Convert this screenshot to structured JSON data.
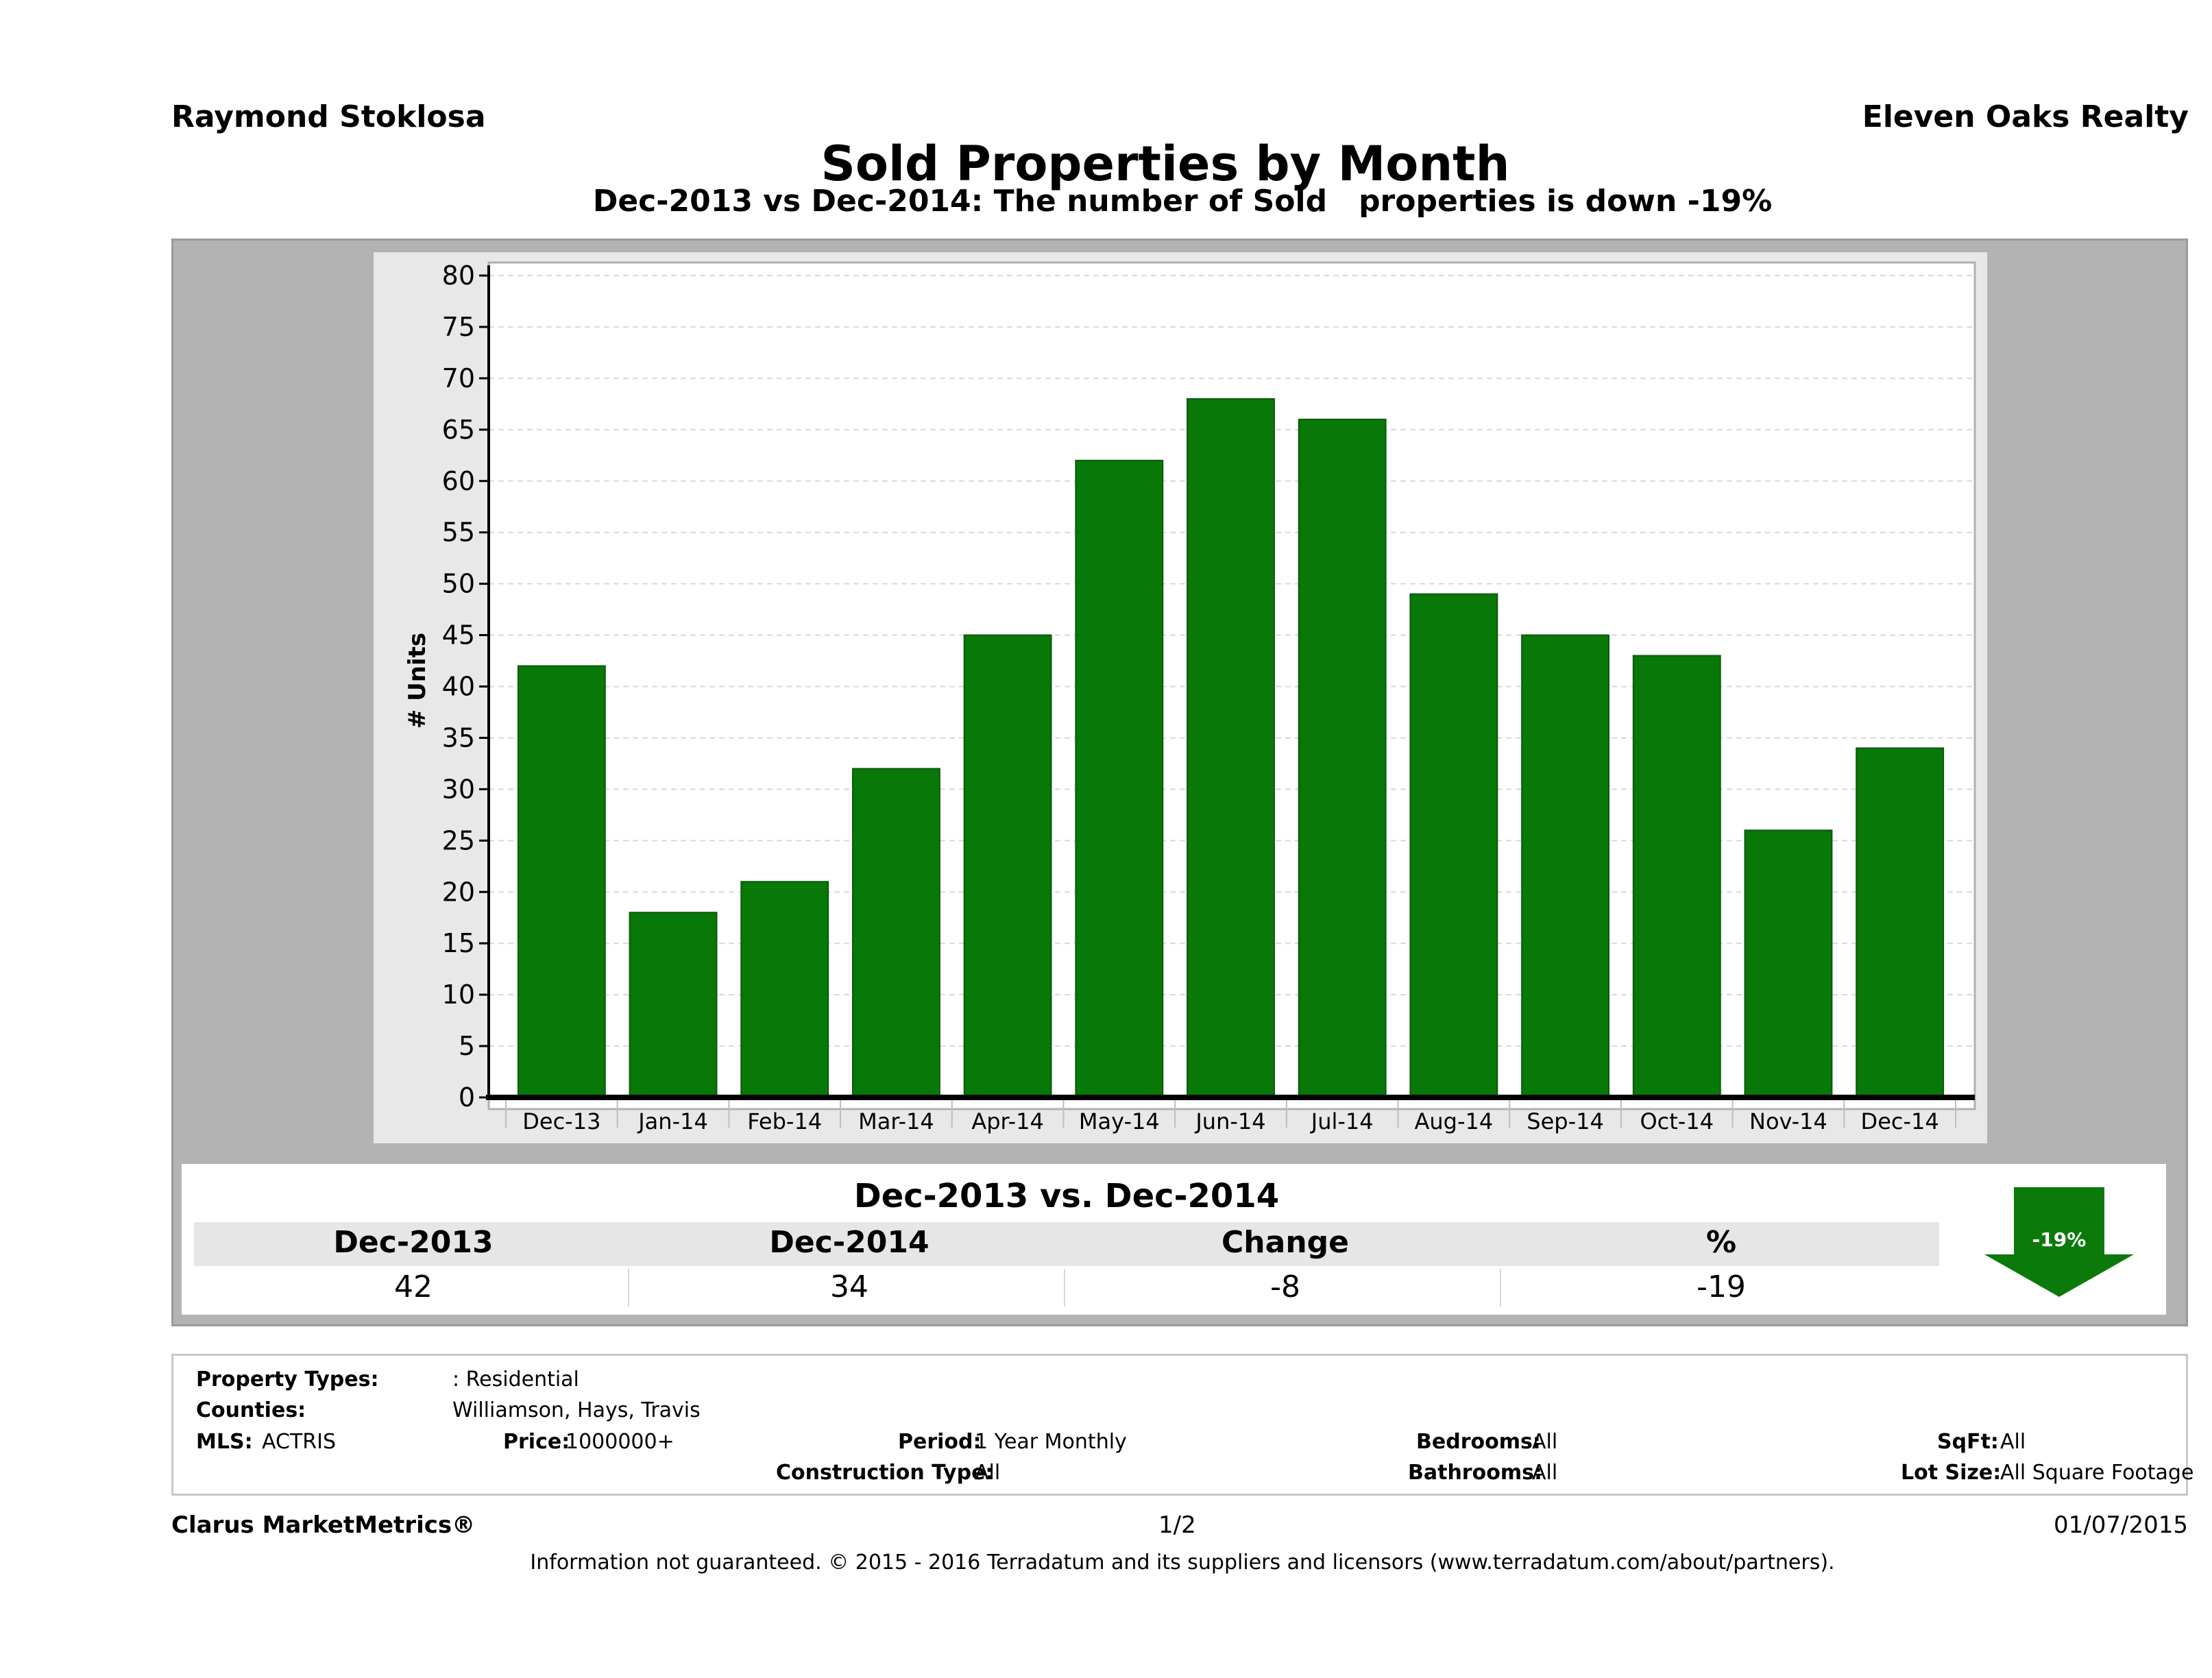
{
  "header": {
    "agent_name": "Raymond Stoklosa",
    "company_name": "Eleven Oaks Realty",
    "title": "Sold Properties by Month",
    "subtitle": "Dec-2013 vs Dec-2014: The number of Sold   properties is down -19%"
  },
  "chart_data": {
    "type": "bar",
    "title": "Sold Properties by Month",
    "categories": [
      "Dec-13",
      "Jan-14",
      "Feb-14",
      "Mar-14",
      "Apr-14",
      "May-14",
      "Jun-14",
      "Jul-14",
      "Aug-14",
      "Sep-14",
      "Oct-14",
      "Nov-14",
      "Dec-14"
    ],
    "values": [
      42,
      18,
      21,
      32,
      45,
      62,
      68,
      66,
      49,
      45,
      43,
      26,
      34
    ],
    "xlabel": "",
    "ylabel": "# Units",
    "ylim": [
      0,
      80
    ],
    "yticks": [
      "0",
      "5",
      "10",
      "15",
      "20",
      "25",
      "30",
      "35",
      "40",
      "45",
      "50",
      "55",
      "60",
      "65",
      "70",
      "75",
      "80"
    ],
    "grid": true,
    "bar_color": "#087808"
  },
  "comparison": {
    "heading": "Dec-2013 vs. Dec-2014",
    "columns": [
      "Dec-2013",
      "Dec-2014",
      "Change",
      "%"
    ],
    "values": [
      "42",
      "34",
      "-8",
      "-19"
    ],
    "badge": "-19%",
    "badge_color": "#0b7a0b"
  },
  "filters": {
    "property_types_label": "Property Types:",
    "property_types_value": ": Residential",
    "counties_label": "Counties:",
    "counties_value": "Williamson, Hays, Travis",
    "mls_label": "MLS:",
    "mls_value": "ACTRIS",
    "price_label": "Price:",
    "price_value": "1000000+",
    "period_label": "Period:",
    "period_value": "1 Year Monthly",
    "construction_label": "Construction Type:",
    "construction_value": "All",
    "bedrooms_label": "Bedrooms:",
    "bedrooms_value": "All",
    "bathrooms_label": "Bathrooms:",
    "bathrooms_value": "All",
    "sqft_label": "SqFt:",
    "sqft_value": "All",
    "lot_label": "Lot Size:",
    "lot_value": "All Square Footage"
  },
  "footer": {
    "brand": "Clarus MarketMetrics®",
    "page": "1/2",
    "date": "01/07/2015",
    "disclaimer": "Information not guaranteed. © 2015 - 2016 Terradatum and its suppliers and licensors (www.terradatum.com/about/partners)."
  }
}
